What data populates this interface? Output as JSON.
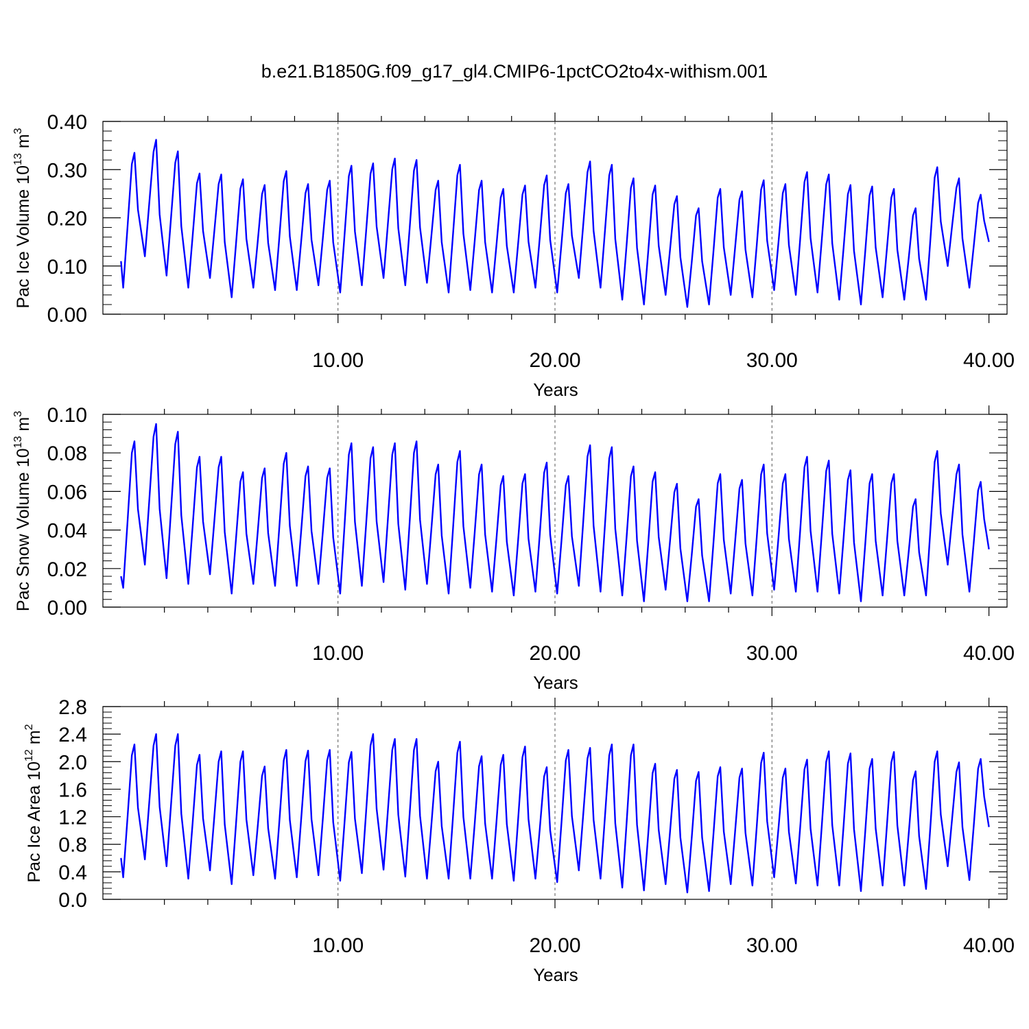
{
  "title": "b.e21.B1850G.f09_g17_gl4.CMIP6-1pctCO2to4x-withism.001",
  "line_color": "#0000ff",
  "chart_data": [
    {
      "type": "line",
      "ylabel_prefix": "Pac Ice Volume 10",
      "ylabel_exp": "13",
      "ylabel_unit": " m",
      "ylabel_unit_exp": "3",
      "xlabel": "Years",
      "xlim": [
        0,
        40
      ],
      "ylim": [
        0,
        0.4
      ],
      "xticks": [
        10,
        20,
        30,
        40
      ],
      "xtick_labels": [
        "10.00",
        "20.00",
        "30.00",
        "40.00"
      ],
      "yticks": [
        0,
        0.1,
        0.2,
        0.3,
        0.4
      ],
      "ytick_labels": [
        "0.00",
        "0.10",
        "0.20",
        "0.30",
        "0.40"
      ],
      "grid": "dashed vertical at 10, 20, 30",
      "series": [
        {
          "min": [
            0.055,
            0.12,
            0.08,
            0.055,
            0.075,
            0.035,
            0.055,
            0.05,
            0.05,
            0.06,
            0.045,
            0.06,
            0.075,
            0.06,
            0.065,
            0.045,
            0.05,
            0.045,
            0.045,
            0.055,
            0.045,
            0.075,
            0.055,
            0.03,
            0.02,
            0.04,
            0.015,
            0.02,
            0.04,
            0.035,
            0.05,
            0.04,
            0.045,
            0.03,
            0.02,
            0.035,
            0.03,
            0.03,
            0.1,
            0.055
          ],
          "max": [
            0.335,
            0.362,
            0.338,
            0.292,
            0.29,
            0.28,
            0.268,
            0.297,
            0.27,
            0.277,
            0.308,
            0.313,
            0.323,
            0.32,
            0.277,
            0.31,
            0.277,
            0.26,
            0.267,
            0.288,
            0.27,
            0.317,
            0.31,
            0.282,
            0.267,
            0.245,
            0.22,
            0.26,
            0.255,
            0.278,
            0.27,
            0.295,
            0.29,
            0.268,
            0.265,
            0.26,
            0.22,
            0.305,
            0.282,
            0.248
          ],
          "start": 0.11,
          "end": 0.15
        }
      ]
    },
    {
      "type": "line",
      "ylabel_prefix": "Pac Snow Volume 10",
      "ylabel_exp": "13",
      "ylabel_unit": " m",
      "ylabel_unit_exp": "3",
      "xlabel": "Years",
      "xlim": [
        0,
        40
      ],
      "ylim": [
        0,
        0.1
      ],
      "xticks": [
        10,
        20,
        30,
        40
      ],
      "xtick_labels": [
        "10.00",
        "20.00",
        "30.00",
        "40.00"
      ],
      "yticks": [
        0,
        0.02,
        0.04,
        0.06,
        0.08,
        0.1
      ],
      "ytick_labels": [
        "0.00",
        "0.02",
        "0.04",
        "0.06",
        "0.08",
        "0.10"
      ],
      "grid": "dashed vertical at 10, 20, 30",
      "series": [
        {
          "min": [
            0.01,
            0.022,
            0.015,
            0.012,
            0.017,
            0.007,
            0.012,
            0.011,
            0.011,
            0.012,
            0.007,
            0.011,
            0.013,
            0.009,
            0.012,
            0.007,
            0.01,
            0.008,
            0.006,
            0.008,
            0.007,
            0.011,
            0.008,
            0.006,
            0.003,
            0.009,
            0.003,
            0.003,
            0.007,
            0.006,
            0.009,
            0.008,
            0.008,
            0.007,
            0.003,
            0.006,
            0.006,
            0.006,
            0.022,
            0.008
          ],
          "max": [
            0.086,
            0.095,
            0.091,
            0.078,
            0.078,
            0.07,
            0.072,
            0.08,
            0.073,
            0.072,
            0.085,
            0.083,
            0.085,
            0.086,
            0.074,
            0.081,
            0.074,
            0.068,
            0.069,
            0.075,
            0.068,
            0.084,
            0.083,
            0.073,
            0.07,
            0.064,
            0.056,
            0.069,
            0.066,
            0.074,
            0.069,
            0.078,
            0.076,
            0.071,
            0.069,
            0.069,
            0.056,
            0.081,
            0.074,
            0.065
          ],
          "start": 0.016,
          "end": 0.03
        }
      ]
    },
    {
      "type": "line",
      "ylabel_prefix": "Pac Ice Area 10",
      "ylabel_exp": "12",
      "ylabel_unit": " m",
      "ylabel_unit_exp": "2",
      "xlabel": "Years",
      "xlim": [
        0,
        40
      ],
      "ylim": [
        0,
        2.8
      ],
      "xticks": [
        10,
        20,
        30,
        40
      ],
      "xtick_labels": [
        "10.00",
        "20.00",
        "30.00",
        "40.00"
      ],
      "yticks": [
        0,
        0.4,
        0.8,
        1.2,
        1.6,
        2.0,
        2.4,
        2.8
      ],
      "ytick_labels": [
        "0.0",
        "0.4",
        "0.8",
        "1.2",
        "1.6",
        "2.0",
        "2.4",
        "2.8"
      ],
      "grid": "dashed vertical at 10, 20, 30",
      "series": [
        {
          "min": [
            0.32,
            0.58,
            0.48,
            0.3,
            0.42,
            0.22,
            0.35,
            0.3,
            0.32,
            0.35,
            0.27,
            0.38,
            0.43,
            0.33,
            0.3,
            0.3,
            0.3,
            0.3,
            0.27,
            0.3,
            0.25,
            0.42,
            0.3,
            0.17,
            0.13,
            0.22,
            0.1,
            0.12,
            0.22,
            0.2,
            0.32,
            0.23,
            0.2,
            0.2,
            0.12,
            0.2,
            0.2,
            0.15,
            0.48,
            0.28
          ],
          "max": [
            2.25,
            2.4,
            2.4,
            2.1,
            2.15,
            2.15,
            1.93,
            2.17,
            2.16,
            2.17,
            2.14,
            2.4,
            2.33,
            2.33,
            2.0,
            2.29,
            2.08,
            2.1,
            2.22,
            1.92,
            2.17,
            2.2,
            2.25,
            2.25,
            1.97,
            1.88,
            1.85,
            1.92,
            1.9,
            2.13,
            1.9,
            2.03,
            2.15,
            2.12,
            2.04,
            2.14,
            1.86,
            2.15,
            1.99,
            2.04
          ],
          "start": 0.6,
          "end": 1.05
        }
      ]
    }
  ]
}
